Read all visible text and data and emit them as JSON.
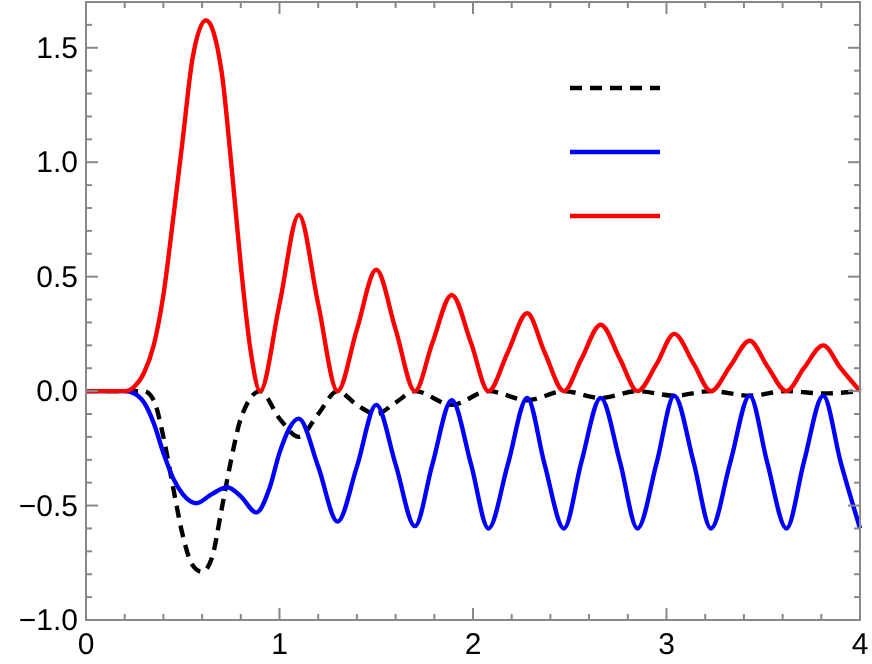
{
  "chart_data": {
    "type": "line",
    "xlim": [
      0,
      4
    ],
    "ylim": [
      -1,
      1.7
    ],
    "xticks": [
      0,
      {
        "value": 0.2,
        "label": null
      },
      {
        "value": 0.4,
        "label": null
      },
      {
        "value": 0.6,
        "label": null
      },
      {
        "value": 0.8,
        "label": null
      },
      1,
      {
        "value": 1.2,
        "label": null
      },
      {
        "value": 1.4,
        "label": null
      },
      {
        "value": 1.6,
        "label": null
      },
      {
        "value": 1.8,
        "label": null
      },
      2,
      {
        "value": 2.2,
        "label": null
      },
      {
        "value": 2.4,
        "label": null
      },
      {
        "value": 2.6,
        "label": null
      },
      {
        "value": 2.8,
        "label": null
      },
      3,
      {
        "value": 3.2,
        "label": null
      },
      {
        "value": 3.4,
        "label": null
      },
      {
        "value": 3.6,
        "label": null
      },
      {
        "value": 3.8,
        "label": null
      },
      4
    ],
    "yticks": [
      {
        "value": -1,
        "label": "−1.0"
      },
      {
        "value": -0.9,
        "label": null
      },
      {
        "value": -0.8,
        "label": null
      },
      {
        "value": -0.7,
        "label": null
      },
      {
        "value": -0.6,
        "label": null
      },
      {
        "value": -0.5,
        "label": "−0.5"
      },
      {
        "value": -0.4,
        "label": null
      },
      {
        "value": -0.3,
        "label": null
      },
      {
        "value": -0.2,
        "label": null
      },
      {
        "value": -0.1,
        "label": null
      },
      {
        "value": 0,
        "label": "0.0"
      },
      {
        "value": 0.1,
        "label": null
      },
      {
        "value": 0.2,
        "label": null
      },
      {
        "value": 0.3,
        "label": null
      },
      {
        "value": 0.4,
        "label": null
      },
      {
        "value": 0.5,
        "label": "0.5"
      },
      {
        "value": 0.6,
        "label": null
      },
      {
        "value": 0.7,
        "label": null
      },
      {
        "value": 0.8,
        "label": null
      },
      {
        "value": 0.9,
        "label": null
      },
      {
        "value": 1,
        "label": "1.0"
      },
      {
        "value": 1.1,
        "label": null
      },
      {
        "value": 1.2,
        "label": null
      },
      {
        "value": 1.3,
        "label": null
      },
      {
        "value": 1.4,
        "label": null
      },
      {
        "value": 1.5,
        "label": "1.5"
      },
      {
        "value": 1.6,
        "label": null
      },
      {
        "value": 1.7,
        "label": null
      }
    ],
    "grid": false,
    "marker": "none",
    "series": [
      {
        "color": "#000000",
        "line_style": "dashed",
        "x": [
          0,
          0.3,
          0.35,
          0.4,
          0.45,
          0.5,
          0.55,
          0.6,
          0.65,
          0.7,
          0.75,
          0.8,
          0.9,
          1.0,
          1.1,
          1.2,
          1.3,
          1.4,
          1.5,
          1.6,
          1.7,
          1.89,
          2.08,
          2.28,
          2.47,
          2.66,
          2.85,
          3.04,
          3.23,
          3.43,
          3.62,
          3.81,
          4.0
        ],
        "values": [
          0,
          0,
          -0.04,
          -0.2,
          -0.42,
          -0.63,
          -0.76,
          -0.79,
          -0.73,
          -0.52,
          -0.3,
          -0.12,
          0,
          -0.12,
          -0.2,
          -0.1,
          0,
          -0.06,
          -0.1,
          -0.05,
          0,
          -0.06,
          0,
          -0.04,
          0,
          -0.03,
          0,
          -0.02,
          0,
          -0.02,
          0,
          -0.01,
          0
        ]
      },
      {
        "color": "#0000ff",
        "line_style": "solid",
        "x": [
          0,
          0.2,
          0.25,
          0.3,
          0.35,
          0.4,
          0.45,
          0.5,
          0.57,
          0.65,
          0.73,
          0.8,
          0.88,
          0.95,
          1.0,
          1.1,
          1.2,
          1.3,
          1.4,
          1.5,
          1.6,
          1.7,
          1.79,
          1.89,
          1.99,
          2.08,
          2.18,
          2.28,
          2.37,
          2.47,
          2.56,
          2.66,
          2.76,
          2.85,
          2.95,
          3.04,
          3.14,
          3.23,
          3.33,
          3.43,
          3.52,
          3.62,
          3.71,
          3.81,
          3.9,
          4.0
        ],
        "values": [
          0,
          0,
          -0.01,
          -0.05,
          -0.14,
          -0.27,
          -0.38,
          -0.45,
          -0.49,
          -0.45,
          -0.42,
          -0.46,
          -0.53,
          -0.42,
          -0.27,
          -0.12,
          -0.33,
          -0.57,
          -0.33,
          -0.06,
          -0.32,
          -0.59,
          -0.32,
          -0.04,
          -0.32,
          -0.6,
          -0.32,
          -0.03,
          -0.32,
          -0.6,
          -0.31,
          -0.03,
          -0.31,
          -0.6,
          -0.31,
          -0.02,
          -0.31,
          -0.6,
          -0.31,
          -0.02,
          -0.31,
          -0.6,
          -0.31,
          -0.02,
          -0.31,
          -0.6
        ]
      },
      {
        "color": "#ff0000",
        "line_style": "solid",
        "x": [
          0,
          0.1,
          0.2,
          0.25,
          0.3,
          0.35,
          0.4,
          0.45,
          0.5,
          0.55,
          0.62,
          0.7,
          0.75,
          0.8,
          0.85,
          0.9,
          1.0,
          1.1,
          1.2,
          1.3,
          1.4,
          1.5,
          1.6,
          1.7,
          1.79,
          1.89,
          1.99,
          2.08,
          2.18,
          2.28,
          2.37,
          2.47,
          2.56,
          2.66,
          2.76,
          2.85,
          2.95,
          3.04,
          3.14,
          3.23,
          3.33,
          3.43,
          3.52,
          3.62,
          3.71,
          3.81,
          3.9,
          4.0
        ],
        "values": [
          0,
          0,
          0,
          0.02,
          0.08,
          0.2,
          0.42,
          0.75,
          1.1,
          1.45,
          1.62,
          1.4,
          1.0,
          0.55,
          0.18,
          0,
          0.38,
          0.77,
          0.38,
          0,
          0.27,
          0.53,
          0.27,
          0,
          0.21,
          0.42,
          0.21,
          0,
          0.17,
          0.34,
          0.17,
          0,
          0.14,
          0.29,
          0.14,
          0,
          0.12,
          0.25,
          0.12,
          0,
          0.11,
          0.22,
          0.11,
          0,
          0.1,
          0.2,
          0.1,
          0
        ]
      }
    ]
  }
}
